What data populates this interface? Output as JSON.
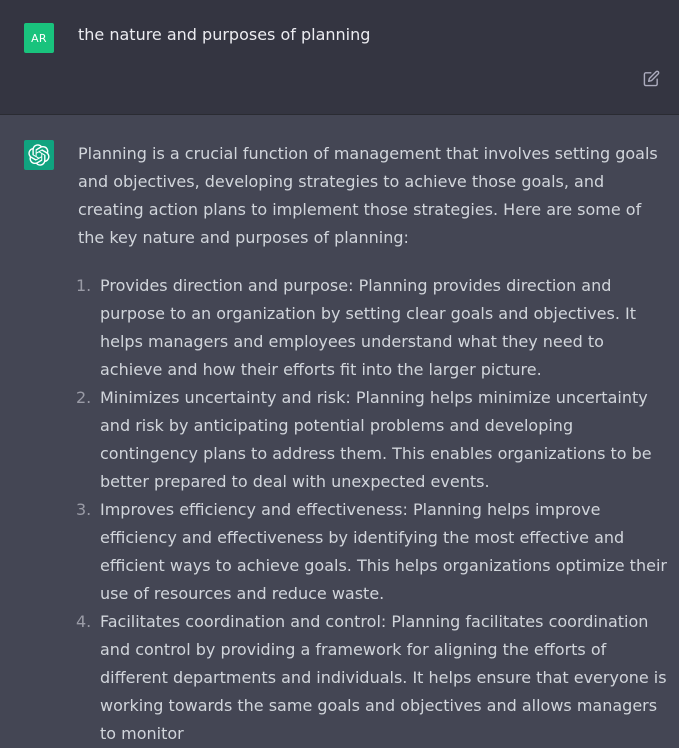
{
  "user_message": {
    "avatar_initials": "AR",
    "text": "the nature and purposes of planning",
    "edit_icon": "edit-icon"
  },
  "assistant_message": {
    "avatar_icon": "openai-logo-icon",
    "intro": "Planning is a crucial function of management that involves setting goals and objectives, developing strategies to achieve those goals, and creating action plans to implement those strategies. Here are some of the key nature and purposes of planning:",
    "points": [
      {
        "number": "1.",
        "text": "Provides direction and purpose: Planning provides direction and purpose to an organization by setting clear goals and objectives. It helps managers and employees understand what they need to achieve and how their efforts fit into the larger picture."
      },
      {
        "number": "2.",
        "text": "Minimizes uncertainty and risk: Planning helps minimize uncertainty and risk by anticipating potential problems and developing contingency plans to address them. This enables organizations to be better prepared to deal with unexpected events."
      },
      {
        "number": "3.",
        "text": "Improves efficiency and effectiveness: Planning helps improve efficiency and effectiveness by identifying the most effective and efficient ways to achieve goals. This helps organizations optimize their use of resources and reduce waste."
      },
      {
        "number": "4.",
        "text": "Facilitates coordination and control: Planning facilitates coordination and control by providing a framework for aligning the efforts of different departments and individuals. It helps ensure that everyone is working towards the same goals and objectives and allows managers to monitor"
      }
    ]
  },
  "colors": {
    "user_bg": "#343541",
    "assistant_bg": "#444654",
    "user_avatar": "#19c37d",
    "gpt_avatar": "#10a37f",
    "text": "#d1d5db"
  }
}
